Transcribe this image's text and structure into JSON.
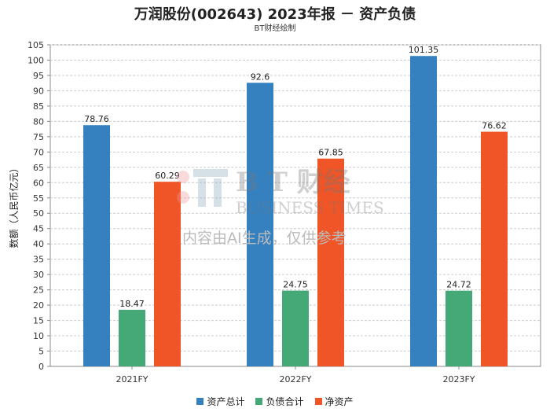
{
  "title": "万润股份(002643) 2023年报 － 资产负债",
  "subtitle": "BT财经绘制",
  "watermark": {
    "logo_text": "BT财经",
    "logo_sub": "BUSINESS TIMES",
    "notice": "内容由AI生成，仅供参考"
  },
  "chart_data": {
    "type": "bar",
    "title": "万润股份(002643) 2023年报 － 资产负债",
    "subtitle": "BT财经绘制",
    "xlabel": "",
    "ylabel": "数额（人民币亿元）",
    "categories": [
      "2021FY",
      "2022FY",
      "2023FY"
    ],
    "ylim": [
      0,
      105
    ],
    "yticks": [
      0,
      5,
      10,
      15,
      20,
      25,
      30,
      35,
      40,
      45,
      50,
      55,
      60,
      65,
      70,
      75,
      80,
      85,
      90,
      95,
      100,
      105
    ],
    "grid": true,
    "legend_position": "bottom",
    "series": [
      {
        "name": "资产总计",
        "color": "#3581C0",
        "values": [
          78.76,
          92.6,
          101.35
        ]
      },
      {
        "name": "负债合计",
        "color": "#45A877",
        "values": [
          18.47,
          24.75,
          24.72
        ]
      },
      {
        "name": "净资产",
        "color": "#F05527",
        "values": [
          60.29,
          67.85,
          76.62
        ]
      }
    ]
  }
}
